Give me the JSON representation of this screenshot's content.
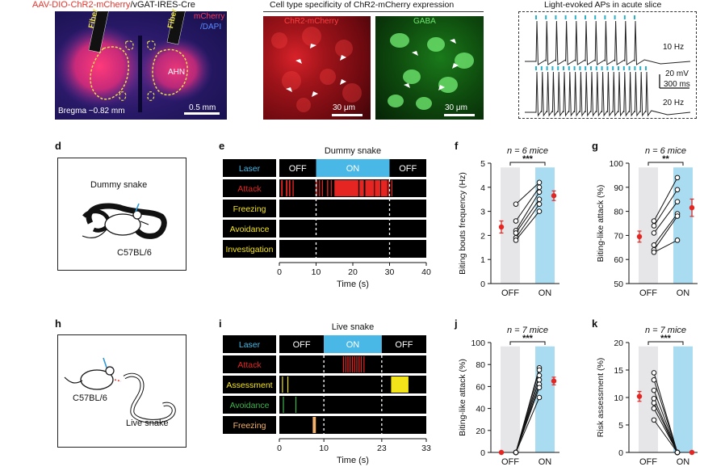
{
  "panel_a": {
    "title_red": "AAV-DIO-ChR2-mCherry",
    "title_black": "/vGAT-IRES-Cre",
    "legend_mcherry": "mCherry",
    "legend_dapi": "/DAPI",
    "fiber": "Fiber",
    "ahn": "AHN",
    "bregma": "Bregma −0.82 mm",
    "scale": "0.5 mm"
  },
  "panel_b": {
    "title": "Cell type specificity of ChR2-mCherry expression",
    "left_label": "ChR2-mCherry",
    "right_label": "GABA",
    "scale_left": "30 μm",
    "scale_right": "30 μm"
  },
  "panel_c": {
    "title": "Light-evoked APs in acute slice",
    "trace1": "10 Hz",
    "trace2": "20 Hz",
    "scale_v": "20 mV",
    "scale_t": "300 ms"
  },
  "panel_letters": {
    "d": "d",
    "e": "e",
    "f": "f",
    "g": "g",
    "h": "h",
    "i": "i",
    "j": "j",
    "k": "k"
  },
  "panel_d": {
    "title": "Dummy snake",
    "mouse": "C57BL/6"
  },
  "panel_h": {
    "mouse": "C57BL/6",
    "snake": "Live snake"
  },
  "chart_data": [
    {
      "panel": "e",
      "type": "raster",
      "title": "Dummy snake",
      "xlabel": "Time (s)",
      "xticks": [
        0,
        10,
        20,
        30,
        40
      ],
      "xlim": [
        0,
        40
      ],
      "laser": [
        {
          "label": "OFF",
          "start": 0,
          "end": 10
        },
        {
          "label": "ON",
          "start": 10,
          "end": 30
        },
        {
          "label": "OFF",
          "start": 30,
          "end": 40
        }
      ],
      "rows": [
        {
          "label": "Laser",
          "color": "#4ab8e6"
        },
        {
          "label": "Attack",
          "color": "#e52521",
          "events": [
            [
              0.5,
              0.9
            ],
            [
              1.8,
              2.2
            ],
            [
              2.6,
              3.0
            ],
            [
              3.6,
              3.9
            ],
            [
              9.9,
              10.3
            ],
            [
              10.8,
              11.0
            ],
            [
              11.6,
              11.8
            ],
            [
              13.0,
              13.3
            ],
            [
              14.0,
              14.2
            ],
            [
              15.0,
              21.5
            ],
            [
              21.8,
              23.0
            ],
            [
              23.4,
              25.8
            ],
            [
              26.0,
              27.5
            ],
            [
              27.7,
              29.4
            ],
            [
              29.6,
              30.0
            ],
            [
              30.5,
              30.7
            ]
          ]
        },
        {
          "label": "Freezing",
          "color": "#f3e319",
          "events": []
        },
        {
          "label": "Avoidance",
          "color": "#f3e319",
          "events": []
        },
        {
          "label": "Investigation",
          "color": "#f3e319",
          "events": []
        }
      ]
    },
    {
      "panel": "f",
      "type": "paired-dot",
      "n_label": "n = 6 mice",
      "sig": "***",
      "ylabel": "Biting bouts frequency (Hz)",
      "ylim": [
        0,
        5
      ],
      "yticks": [
        0,
        1,
        2,
        3,
        4,
        5
      ],
      "categories": [
        "OFF",
        "ON"
      ],
      "pairs": [
        [
          3.3,
          4.2
        ],
        [
          2.6,
          4.0
        ],
        [
          2.2,
          3.8
        ],
        [
          2.1,
          3.5
        ],
        [
          1.9,
          3.3
        ],
        [
          1.8,
          3.0
        ]
      ],
      "mean": [
        2.35,
        3.65
      ],
      "sem": [
        0.25,
        0.2
      ]
    },
    {
      "panel": "g",
      "type": "paired-dot",
      "n_label": "n = 6 mice",
      "sig": "**",
      "ylabel": "Biting-like attack (%)",
      "ylim": [
        50,
        100
      ],
      "yticks": [
        50,
        60,
        70,
        80,
        90,
        100
      ],
      "categories": [
        "OFF",
        "ON"
      ],
      "pairs": [
        [
          76,
          94
        ],
        [
          74,
          89
        ],
        [
          71,
          84
        ],
        [
          66,
          79
        ],
        [
          64,
          78
        ],
        [
          63,
          68
        ]
      ],
      "mean": [
        69.5,
        81.5
      ],
      "sem": [
        2.3,
        3.6
      ]
    },
    {
      "panel": "i",
      "type": "raster",
      "title": "Live snake",
      "xlabel": "Time (s)",
      "xticks": [
        0,
        10,
        23,
        33
      ],
      "xlim": [
        0,
        33
      ],
      "laser": [
        {
          "label": "OFF",
          "start": 0,
          "end": 10
        },
        {
          "label": "ON",
          "start": 10,
          "end": 23
        },
        {
          "label": "OFF",
          "start": 23,
          "end": 33
        }
      ],
      "rows": [
        {
          "label": "Laser",
          "color": "#4ab8e6"
        },
        {
          "label": "Attack",
          "color": "#e52521",
          "events": [
            [
              14.3,
              14.5
            ],
            [
              14.8,
              15.0
            ],
            [
              15.3,
              15.5
            ],
            [
              15.8,
              16.0
            ],
            [
              16.3,
              16.5
            ],
            [
              16.8,
              17.0
            ],
            [
              17.3,
              17.5
            ],
            [
              17.8,
              18.0
            ],
            [
              18.3,
              18.5
            ],
            [
              18.9,
              19.1
            ]
          ]
        },
        {
          "label": "Assessment",
          "color": "#f3e319",
          "events": [
            [
              0.6,
              0.8
            ],
            [
              1.8,
              2.0
            ],
            [
              25.1,
              29.0
            ]
          ]
        },
        {
          "label": "Avoidance",
          "color": "#3bb54a",
          "events": [
            [
              0.8,
              1.0
            ],
            [
              3.6,
              3.8
            ]
          ]
        },
        {
          "label": "Freezing",
          "color": "#f4b26b",
          "events": [
            [
              7.5,
              8.2
            ]
          ]
        }
      ]
    },
    {
      "panel": "j",
      "type": "paired-dot",
      "n_label": "n = 7 mice",
      "sig": "***",
      "ylabel": "Biting-like attack (%)",
      "ylim": [
        0,
        100
      ],
      "yticks": [
        0,
        20,
        40,
        60,
        80,
        100
      ],
      "categories": [
        "OFF",
        "ON"
      ],
      "pairs": [
        [
          0,
          77
        ],
        [
          0,
          75
        ],
        [
          0,
          70
        ],
        [
          0,
          66
        ],
        [
          0,
          62
        ],
        [
          0,
          59
        ],
        [
          0,
          50
        ]
      ],
      "mean": [
        0,
        65
      ],
      "sem": [
        0,
        3.5
      ]
    },
    {
      "panel": "k",
      "type": "paired-dot",
      "n_label": "n = 7 mice",
      "sig": "***",
      "ylabel": "Risk assessment (%)",
      "ylim": [
        0,
        20
      ],
      "yticks": [
        0,
        5,
        10,
        15,
        20
      ],
      "categories": [
        "OFF",
        "ON"
      ],
      "pairs": [
        [
          14.5,
          0
        ],
        [
          13.2,
          0
        ],
        [
          11.3,
          0
        ],
        [
          9.8,
          0
        ],
        [
          9.0,
          0
        ],
        [
          8.0,
          0
        ],
        [
          5.9,
          0
        ]
      ],
      "mean": [
        10.2,
        0
      ],
      "sem": [
        0.9,
        0
      ]
    }
  ]
}
